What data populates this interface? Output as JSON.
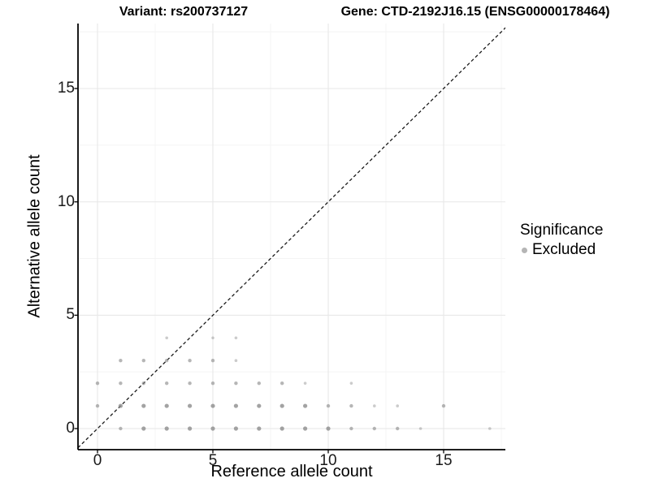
{
  "titles": {
    "variant": "Variant: rs200737127",
    "gene": "Gene: CTD-2192J16.15 (ENSG00000178464)"
  },
  "legend": {
    "title": "Significance",
    "items": [
      {
        "label": "Excluded",
        "dot_color": "#b5b5b5"
      }
    ]
  },
  "colors": {
    "point": "#8c8c8c",
    "major_grid": "#e9e9e9",
    "minor_grid": "#f4f4f4",
    "axis_line": "#000000",
    "identity_line": "#1a1a1a",
    "background": "#ffffff"
  },
  "chart_data": {
    "type": "scatter",
    "title_left": "Variant: rs200737127",
    "title_right": "Gene: CTD-2192J16.15 (ENSG00000178464)",
    "xlabel": "Reference allele count",
    "ylabel": "Alternative allele count",
    "xlim": [
      -0.9,
      17.8
    ],
    "ylim": [
      -0.95,
      17.85
    ],
    "xticks": [
      0,
      5,
      10,
      15
    ],
    "yticks": [
      0,
      5,
      10,
      15
    ],
    "minor_gridlines": [
      2.5,
      7.5,
      12.5,
      17.5
    ],
    "grid": true,
    "legend_position": "right",
    "identity_line": {
      "style": "dashed",
      "equation": "y = x"
    },
    "series": [
      {
        "name": "Excluded",
        "color": "#8c8c8c",
        "points": [
          {
            "x": 1,
            "y": 0,
            "s": 2
          },
          {
            "x": 2,
            "y": 0,
            "s": 3
          },
          {
            "x": 3,
            "y": 0,
            "s": 3
          },
          {
            "x": 4,
            "y": 0,
            "s": 3
          },
          {
            "x": 5,
            "y": 0,
            "s": 3
          },
          {
            "x": 6,
            "y": 0,
            "s": 3
          },
          {
            "x": 7,
            "y": 0,
            "s": 3
          },
          {
            "x": 8,
            "y": 0,
            "s": 3
          },
          {
            "x": 9,
            "y": 0,
            "s": 3
          },
          {
            "x": 10,
            "y": 0,
            "s": 3
          },
          {
            "x": 11,
            "y": 0,
            "s": 2
          },
          {
            "x": 12,
            "y": 0,
            "s": 2
          },
          {
            "x": 13,
            "y": 0,
            "s": 2
          },
          {
            "x": 14,
            "y": 0,
            "s": 1
          },
          {
            "x": 17,
            "y": 0,
            "s": 1
          },
          {
            "x": 0,
            "y": 1,
            "s": 2
          },
          {
            "x": 1,
            "y": 1,
            "s": 3
          },
          {
            "x": 2,
            "y": 1,
            "s": 3
          },
          {
            "x": 3,
            "y": 1,
            "s": 3
          },
          {
            "x": 4,
            "y": 1,
            "s": 3
          },
          {
            "x": 5,
            "y": 1,
            "s": 3
          },
          {
            "x": 6,
            "y": 1,
            "s": 3
          },
          {
            "x": 7,
            "y": 1,
            "s": 3
          },
          {
            "x": 8,
            "y": 1,
            "s": 3
          },
          {
            "x": 9,
            "y": 1,
            "s": 3
          },
          {
            "x": 10,
            "y": 1,
            "s": 2
          },
          {
            "x": 11,
            "y": 1,
            "s": 2
          },
          {
            "x": 12,
            "y": 1,
            "s": 1
          },
          {
            "x": 13,
            "y": 1,
            "s": 1
          },
          {
            "x": 15,
            "y": 1,
            "s": 2
          },
          {
            "x": 0,
            "y": 2,
            "s": 2
          },
          {
            "x": 1,
            "y": 2,
            "s": 2
          },
          {
            "x": 2,
            "y": 2,
            "s": 2
          },
          {
            "x": 3,
            "y": 2,
            "s": 2
          },
          {
            "x": 4,
            "y": 2,
            "s": 2
          },
          {
            "x": 5,
            "y": 2,
            "s": 2
          },
          {
            "x": 6,
            "y": 2,
            "s": 2
          },
          {
            "x": 7,
            "y": 2,
            "s": 2
          },
          {
            "x": 8,
            "y": 2,
            "s": 2
          },
          {
            "x": 9,
            "y": 2,
            "s": 1
          },
          {
            "x": 11,
            "y": 2,
            "s": 1
          },
          {
            "x": 1,
            "y": 3,
            "s": 2
          },
          {
            "x": 2,
            "y": 3,
            "s": 2
          },
          {
            "x": 3,
            "y": 3,
            "s": 2
          },
          {
            "x": 4,
            "y": 3,
            "s": 2
          },
          {
            "x": 5,
            "y": 3,
            "s": 2
          },
          {
            "x": 6,
            "y": 3,
            "s": 1
          },
          {
            "x": 3,
            "y": 4,
            "s": 1
          },
          {
            "x": 5,
            "y": 4,
            "s": 1
          },
          {
            "x": 6,
            "y": 4,
            "s": 1
          }
        ]
      }
    ]
  }
}
